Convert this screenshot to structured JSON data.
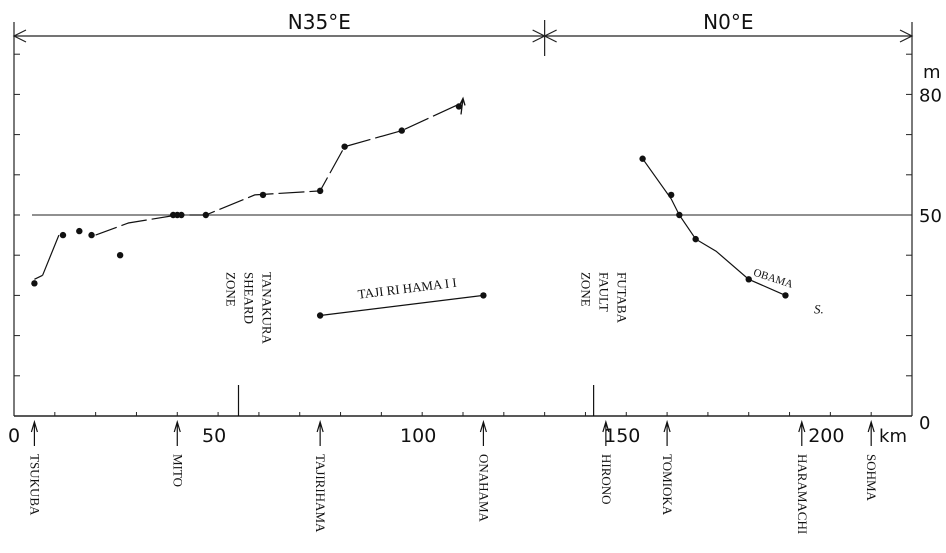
{
  "chart_data": {
    "type": "line",
    "title": "",
    "xlabel": "",
    "ylabel": "",
    "x_unit": "km",
    "y_unit": "m",
    "xlim": [
      0,
      220
    ],
    "ylim": [
      0,
      90
    ],
    "x_ticks": [
      0,
      50,
      100,
      150,
      200
    ],
    "y_ticks": [
      0,
      50,
      80
    ],
    "grid": false,
    "legend": "none",
    "directions": [
      {
        "label": "N35°E",
        "x_from": 0,
        "x_to": 130
      },
      {
        "label": "N0°E",
        "x_from": 130,
        "x_to": 220
      }
    ],
    "reference_line_y": 50,
    "series": [
      {
        "name": "",
        "segments": [
          {
            "points": [
              [
                5,
                34
              ],
              [
                7,
                35
              ]
            ],
            "dashed": false
          },
          {
            "points": [
              [
                11,
                45
              ],
              [
                7,
                35
              ]
            ],
            "dashed": false
          },
          {
            "points": [
              [
                40,
                50
              ],
              [
                28,
                48
              ],
              [
                20,
                45
              ]
            ],
            "dashed": true
          },
          {
            "points": [
              [
                43,
                50
              ],
              [
                47,
                50
              ],
              [
                59,
                55
              ],
              [
                75,
                56
              ],
              [
                81,
                67
              ],
              [
                95,
                71
              ],
              [
                110,
                78
              ]
            ],
            "dashed": true
          }
        ],
        "points": [
          [
            5,
            33
          ],
          [
            12,
            45
          ],
          [
            16,
            46
          ],
          [
            19,
            45
          ],
          [
            26,
            40
          ],
          [
            39,
            50
          ],
          [
            40,
            50
          ],
          [
            41,
            50
          ],
          [
            47,
            50
          ],
          [
            61,
            55
          ],
          [
            75,
            56
          ],
          [
            81,
            67
          ],
          [
            95,
            71
          ],
          [
            109,
            77
          ]
        ],
        "end_arrow": [
          110,
          78
        ]
      },
      {
        "name": "TAJI RI HAMA  I I",
        "segments": [
          {
            "points": [
              [
                75,
                25
              ],
              [
                115,
                30
              ]
            ],
            "dashed": false
          }
        ],
        "points": [
          [
            75,
            25
          ],
          [
            115,
            30
          ]
        ]
      },
      {
        "name": "",
        "segments": [
          {
            "points": [
              [
                154,
                64
              ],
              [
                161,
                54
              ],
              [
                163,
                50
              ],
              [
                167,
                44
              ],
              [
                172,
                41
              ],
              [
                180,
                34
              ],
              [
                189,
                30
              ]
            ],
            "dashed": false
          }
        ],
        "points": [
          [
            154,
            64
          ],
          [
            161,
            55
          ],
          [
            163,
            50
          ],
          [
            167,
            44
          ],
          [
            180,
            34
          ],
          [
            189,
            30
          ]
        ]
      }
    ],
    "annotations": [
      {
        "text": "OBAMA",
        "x": 180,
        "y": 34
      },
      {
        "text": "S.",
        "x": 196,
        "y": 28
      },
      {
        "text": "TANAKURA\nSHEARD\nZONE",
        "x": 55,
        "y": 13
      },
      {
        "text": "FUTABA\nFAULT\nZONE",
        "x": 142,
        "y": 13
      }
    ],
    "locations": [
      {
        "name": "TSUKUBA",
        "x": 5
      },
      {
        "name": "MITO",
        "x": 40
      },
      {
        "name": "TAJIRIHAMA",
        "x": 75
      },
      {
        "name": "ONAHAMA",
        "x": 115
      },
      {
        "name": "HIRONO",
        "x": 145
      },
      {
        "name": "TOMIOKA",
        "x": 160
      },
      {
        "name": "HARAMACHI",
        "x": 193
      },
      {
        "name": "SOHMA",
        "x": 210
      }
    ]
  }
}
